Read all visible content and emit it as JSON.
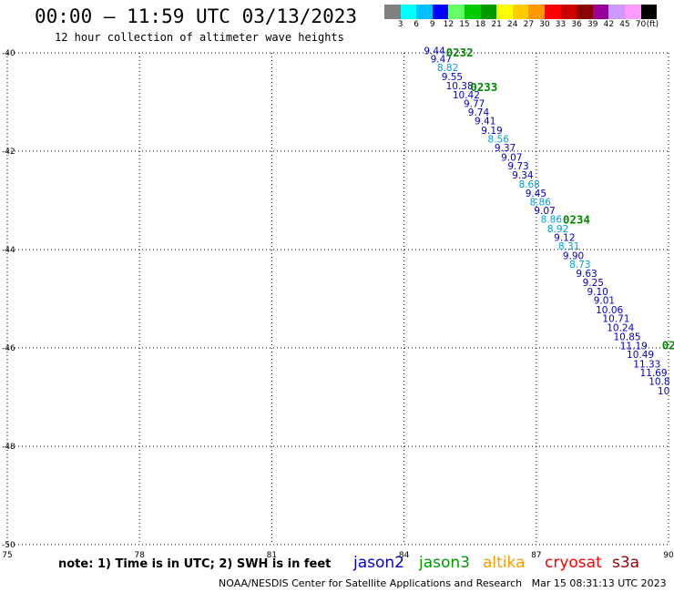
{
  "header": {
    "title": "00:00 – 11:59 UTC 03/13/2023",
    "subtitle": "12 hour collection of altimeter wave heights"
  },
  "legend": {
    "colors": [
      "#808080",
      "#00ffff",
      "#00bfff",
      "#0000ff",
      "#66ff66",
      "#00cc00",
      "#009900",
      "#ffff00",
      "#ffcc00",
      "#ff9900",
      "#ff0000",
      "#cc0000",
      "#8b0000",
      "#990099",
      "#cc99ff",
      "#ff99ff",
      "#000000"
    ],
    "labels": [
      "3",
      "6",
      "9",
      "12",
      "15",
      "18",
      "21",
      "24",
      "27",
      "30",
      "33",
      "36",
      "39",
      "42",
      "45",
      "70",
      "(ft)"
    ]
  },
  "axes": {
    "lat_ticks": [
      "-40",
      "-42",
      "-44",
      "-46",
      "-48",
      "-50"
    ],
    "lon_ticks": [
      "75",
      "78",
      "81",
      "84",
      "87",
      "90"
    ]
  },
  "track": {
    "time_labels": [
      {
        "text": "0232",
        "lon": 84.95,
        "lat": -40.0
      },
      {
        "text": "0233",
        "lon": 85.5,
        "lat": -40.7
      },
      {
        "text": "0234",
        "lon": 87.6,
        "lat": -43.4
      },
      {
        "text": "02",
        "lon": 89.85,
        "lat": -45.95
      }
    ],
    "swh_points": [
      {
        "value": "9.44",
        "lon": 84.45,
        "lat": -39.95,
        "color": "#0000cc"
      },
      {
        "value": "9.47",
        "lon": 84.6,
        "lat": -40.12,
        "color": "#0000cc"
      },
      {
        "value": "8.82",
        "lon": 84.75,
        "lat": -40.3,
        "color": "#00a0e0"
      },
      {
        "value": "9.55",
        "lon": 84.85,
        "lat": -40.48,
        "color": "#0000cc"
      },
      {
        "value": "10.38",
        "lon": 84.95,
        "lat": -40.67,
        "color": "#0000cc"
      },
      {
        "value": "10.42",
        "lon": 85.1,
        "lat": -40.85,
        "color": "#0000cc"
      },
      {
        "value": "9.77",
        "lon": 85.35,
        "lat": -41.03,
        "color": "#0000cc"
      },
      {
        "value": "9.74",
        "lon": 85.45,
        "lat": -41.2,
        "color": "#0000cc"
      },
      {
        "value": "9.41",
        "lon": 85.6,
        "lat": -41.38,
        "color": "#0000cc"
      },
      {
        "value": "9.19",
        "lon": 85.75,
        "lat": -41.57,
        "color": "#0000cc"
      },
      {
        "value": "8.56",
        "lon": 85.9,
        "lat": -41.75,
        "color": "#00a0e0"
      },
      {
        "value": "9.37",
        "lon": 86.05,
        "lat": -41.93,
        "color": "#0000cc"
      },
      {
        "value": "9.07",
        "lon": 86.2,
        "lat": -42.12,
        "color": "#0000cc"
      },
      {
        "value": "9.73",
        "lon": 86.35,
        "lat": -42.3,
        "color": "#0000cc"
      },
      {
        "value": "9.34",
        "lon": 86.45,
        "lat": -42.48,
        "color": "#0000cc"
      },
      {
        "value": "8.68",
        "lon": 86.6,
        "lat": -42.67,
        "color": "#00a0e0"
      },
      {
        "value": "9.45",
        "lon": 86.75,
        "lat": -42.85,
        "color": "#0000cc"
      },
      {
        "value": "8.86",
        "lon": 86.85,
        "lat": -43.03,
        "color": "#00a0e0"
      },
      {
        "value": "9.07",
        "lon": 86.95,
        "lat": -43.2,
        "color": "#0000cc"
      },
      {
        "value": "8.86",
        "lon": 87.1,
        "lat": -43.38,
        "color": "#00a0e0"
      },
      {
        "value": "8.92",
        "lon": 87.25,
        "lat": -43.57,
        "color": "#00a0e0"
      },
      {
        "value": "9.12",
        "lon": 87.4,
        "lat": -43.75,
        "color": "#0000cc"
      },
      {
        "value": "8.31",
        "lon": 87.5,
        "lat": -43.93,
        "color": "#00a0e0"
      },
      {
        "value": "9.90",
        "lon": 87.6,
        "lat": -44.12,
        "color": "#0000cc"
      },
      {
        "value": "8.73",
        "lon": 87.75,
        "lat": -44.3,
        "color": "#00a0e0"
      },
      {
        "value": "9.63",
        "lon": 87.9,
        "lat": -44.48,
        "color": "#0000cc"
      },
      {
        "value": "9.25",
        "lon": 88.05,
        "lat": -44.67,
        "color": "#0000cc"
      },
      {
        "value": "9.10",
        "lon": 88.15,
        "lat": -44.85,
        "color": "#0000cc"
      },
      {
        "value": "9.01",
        "lon": 88.3,
        "lat": -45.03,
        "color": "#0000cc"
      },
      {
        "value": "10.06",
        "lon": 88.35,
        "lat": -45.22,
        "color": "#0000cc"
      },
      {
        "value": "10.71",
        "lon": 88.5,
        "lat": -45.4,
        "color": "#0000cc"
      },
      {
        "value": "10.24",
        "lon": 88.6,
        "lat": -45.58,
        "color": "#0000cc"
      },
      {
        "value": "10.85",
        "lon": 88.75,
        "lat": -45.77,
        "color": "#0000cc"
      },
      {
        "value": "11.19",
        "lon": 88.9,
        "lat": -45.95,
        "color": "#0000cc"
      },
      {
        "value": "10.49",
        "lon": 89.05,
        "lat": -46.13,
        "color": "#0000cc"
      },
      {
        "value": "11.33",
        "lon": 89.2,
        "lat": -46.32,
        "color": "#0000cc"
      },
      {
        "value": "11.69",
        "lon": 89.35,
        "lat": -46.5,
        "color": "#0000cc"
      },
      {
        "value": "10.8",
        "lon": 89.55,
        "lat": -46.68,
        "color": "#0000cc"
      },
      {
        "value": "10",
        "lon": 89.75,
        "lat": -46.87,
        "color": "#0000cc"
      }
    ]
  },
  "footer": {
    "note": "note: 1) Time is in UTC; 2) SWH is in feet",
    "satellites": [
      {
        "name": "jason2",
        "color": "#0000cc"
      },
      {
        "name": "jason3",
        "color": "#009900"
      },
      {
        "name": "altika",
        "color": "#ff9900"
      },
      {
        "name": "cryosat",
        "color": "#ff0000"
      },
      {
        "name": "s3a",
        "color": "#990000"
      }
    ],
    "credit": "NOAA/NESDIS Center for Satellite Applications and Research   Mar 15 08:31:13 UTC 2023"
  }
}
